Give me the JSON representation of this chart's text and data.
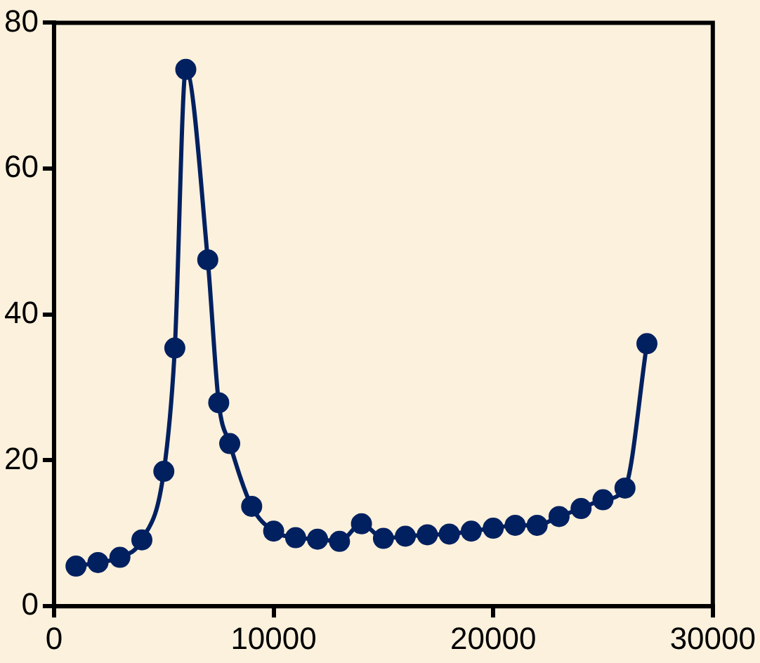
{
  "chart_data": {
    "type": "line",
    "x": [
      1000,
      2000,
      3000,
      4000,
      5000,
      5500,
      6000,
      7000,
      7500,
      8000,
      9000,
      10000,
      11000,
      12000,
      13000,
      14000,
      15000,
      16000,
      17000,
      18000,
      19000,
      20000,
      21000,
      22000,
      23000,
      24000,
      25000,
      26000,
      27000
    ],
    "series": [
      {
        "color": "#002060",
        "values": [
          5.5,
          6.0,
          6.7,
          9.1,
          18.5,
          35.4,
          73.6,
          47.5,
          27.9,
          22.3,
          13.7,
          10.3,
          9.4,
          9.2,
          8.9,
          11.3,
          9.3,
          9.6,
          9.8,
          9.9,
          10.3,
          10.7,
          11.1,
          11.1,
          12.3,
          13.4,
          14.6,
          16.2,
          36.0
        ]
      }
    ],
    "xlim": [
      0,
      30000
    ],
    "xticks": [
      0,
      10000,
      20000,
      30000
    ],
    "ylim": [
      0,
      80
    ],
    "yticks": [
      0,
      20,
      40,
      60,
      80
    ],
    "grid": false,
    "legend": false,
    "marker": "circle",
    "line_style": "solid"
  }
}
